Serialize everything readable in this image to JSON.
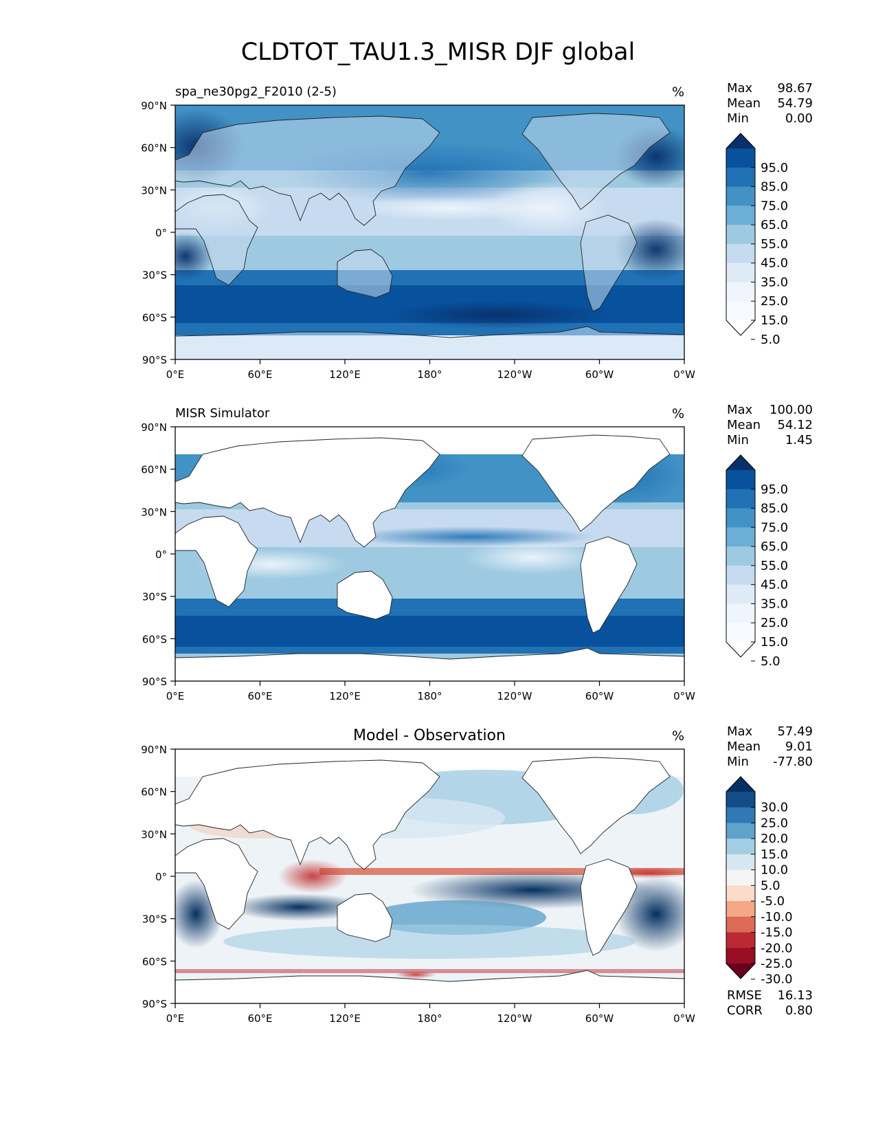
{
  "figure": {
    "title": "CLDTOT_TAU1.3_MISR DJF global"
  },
  "axes": {
    "lat_labels": [
      "90°N",
      "60°N",
      "30°N",
      "0°",
      "30°S",
      "60°S",
      "90°S"
    ],
    "lon_labels": [
      "0°E",
      "60°E",
      "120°E",
      "180°",
      "120°W",
      "60°W",
      "0°W"
    ]
  },
  "panels": [
    {
      "id": "model",
      "left_title": "spa_ne30pg2_F2010 (2-5)",
      "center_title": "",
      "units": "%",
      "stats": [
        {
          "label": "Max",
          "value": "98.67"
        },
        {
          "label": "Mean",
          "value": "54.79"
        },
        {
          "label": "Min",
          "value": "0.00"
        }
      ],
      "colorbar": {
        "labels": [
          "95.0",
          "85.0",
          "75.0",
          "65.0",
          "55.0",
          "45.0",
          "35.0",
          "25.0",
          "15.0",
          "5.0"
        ],
        "colors": [
          "#08306b",
          "#08519c",
          "#2171b5",
          "#4292c6",
          "#6baed6",
          "#9ecae1",
          "#c6dbef",
          "#deebf7",
          "#eef5fc",
          "#f7fbff",
          "#ffffff"
        ]
      },
      "footer_stats": []
    },
    {
      "id": "obs",
      "left_title": "MISR Simulator",
      "center_title": "",
      "units": "%",
      "stats": [
        {
          "label": "Max",
          "value": "100.00"
        },
        {
          "label": "Mean",
          "value": "54.12"
        },
        {
          "label": "Min",
          "value": "1.45"
        }
      ],
      "colorbar": {
        "labels": [
          "95.0",
          "85.0",
          "75.0",
          "65.0",
          "55.0",
          "45.0",
          "35.0",
          "25.0",
          "15.0",
          "5.0"
        ],
        "colors": [
          "#08306b",
          "#08519c",
          "#2171b5",
          "#4292c6",
          "#6baed6",
          "#9ecae1",
          "#c6dbef",
          "#deebf7",
          "#eef5fc",
          "#f7fbff",
          "#ffffff"
        ]
      },
      "footer_stats": []
    },
    {
      "id": "diff",
      "left_title": "",
      "center_title": "Model - Observation",
      "units": "%",
      "stats": [
        {
          "label": "Max",
          "value": "57.49"
        },
        {
          "label": "Mean",
          "value": "9.01"
        },
        {
          "label": "Min",
          "value": "-77.80"
        }
      ],
      "colorbar": {
        "labels": [
          "30.0",
          "25.0",
          "20.0",
          "15.0",
          "10.0",
          "5.0",
          "-5.0",
          "-10.0",
          "-15.0",
          "-20.0",
          "-25.0",
          "-30.0"
        ],
        "colors": [
          "#053061",
          "#134c87",
          "#2f79b5",
          "#5fa2cb",
          "#a3cde3",
          "#d6e7f1",
          "#f5f5f5",
          "#fcdcc9",
          "#f4a886",
          "#db6b55",
          "#bb2a33",
          "#980e23",
          "#67001f"
        ]
      },
      "footer_stats": [
        {
          "label": "RMSE",
          "value": "16.13"
        },
        {
          "label": "CORR",
          "value": "0.80"
        }
      ]
    }
  ]
}
